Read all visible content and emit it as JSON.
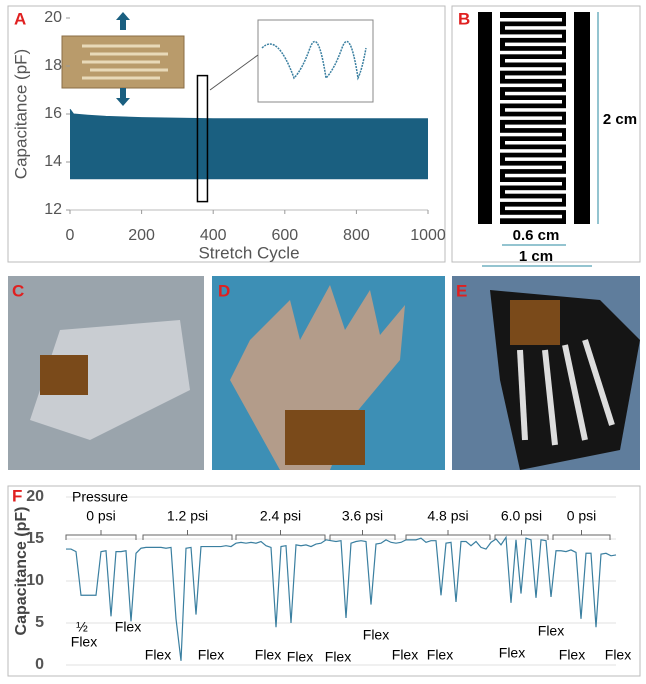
{
  "panels": {
    "a": "A",
    "b": "B",
    "c": "C",
    "d": "D",
    "e": "E",
    "f": "F"
  },
  "dimensions": {
    "inner_width": "0.6 cm",
    "outer_width": "1 cm",
    "height": "2 cm"
  },
  "chart_data": [
    {
      "type": "band",
      "ylabel": "Capacitance (pF)",
      "xlabel": "Stretch Cycle",
      "x": [
        0,
        10,
        50,
        100,
        200,
        400,
        600,
        800,
        1000
      ],
      "high": [
        16.2,
        16.0,
        15.95,
        15.9,
        15.85,
        15.8,
        15.8,
        15.8,
        15.8
      ],
      "low": [
        13.3,
        13.3,
        13.3,
        13.3,
        13.3,
        13.3,
        13.3,
        13.3,
        13.3
      ],
      "color": "#1a5f80",
      "xlim": [
        0,
        1000
      ],
      "xticks": [
        0,
        200,
        400,
        600,
        800,
        1000
      ],
      "ylim": [
        12,
        20
      ],
      "yticks": [
        12,
        14,
        16,
        18,
        20
      ]
    },
    {
      "type": "line",
      "ylabel": "Capacitance (pF)",
      "color": "#3a7fa0",
      "values": [
        13.8,
        13.8,
        13.5,
        8.3,
        8.3,
        8.3,
        8.3,
        13.5,
        13.6,
        5.8,
        13.5,
        13.5,
        13.6,
        5.2,
        13.3,
        13.9,
        14.0,
        14.0,
        14.0,
        14.0,
        13.9,
        14.0,
        5.5,
        0.5,
        13.9,
        14.0,
        6.0,
        14.1,
        14.1,
        14.1,
        14.1,
        14.1,
        14.2,
        14.1,
        14.5,
        14.6,
        14.5,
        14.6,
        14.5,
        14.7,
        14.2,
        14.0,
        4.5,
        14.1,
        14.2,
        5.0,
        14.3,
        14.2,
        14.3,
        14.1,
        14.4,
        14.5,
        14.9,
        14.8,
        14.7,
        14.8,
        5.6,
        14.5,
        14.7,
        14.8,
        14.7,
        7.2,
        14.4,
        14.5,
        14.9,
        14.6,
        14.5,
        14.6,
        14.9,
        14.9,
        14.9,
        15.1,
        14.6,
        14.8,
        14.8,
        8.3,
        14.5,
        14.6,
        7.5,
        14.7,
        14.7,
        14.2,
        14.7,
        14.0,
        13.8,
        14.6,
        15.0,
        14.3,
        15.2,
        7.4,
        14.9,
        8.5,
        15.1,
        14.9,
        8.0,
        14.9,
        14.8,
        8.1,
        13.6,
        13.6,
        13.5,
        13.7,
        13.4,
        5.5,
        13.3,
        13.3,
        4.5,
        13.2,
        13.3,
        13.0,
        13.1
      ],
      "ylim": [
        0,
        20
      ],
      "yticks": [
        0,
        5,
        10,
        15,
        20
      ],
      "pressure_title": "Pressure",
      "groups": [
        "0 psi",
        "1.2 psi",
        "2.4 psi",
        "3.6 psi",
        "4.8 psi",
        "6.0 psi",
        "0 psi"
      ],
      "flex_labels": [
        "½",
        "Flex",
        "Flex",
        "Flex",
        "Flex",
        "Flex",
        "Flex",
        "Flex",
        "Flex",
        "Flex",
        "Flex",
        "Flex",
        "Flex",
        "Flex",
        "Flex"
      ]
    }
  ]
}
